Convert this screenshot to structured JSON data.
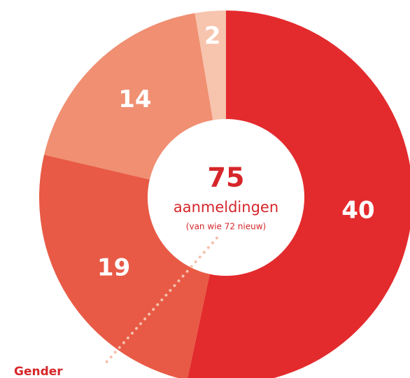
{
  "chart_data": {
    "type": "donut",
    "title": "Gender",
    "values": [
      40,
      19,
      14,
      2
    ],
    "colors": [
      "#e32b2d",
      "#e85a45",
      "#f08f72",
      "#f7c4ad"
    ],
    "center_value": 75,
    "center_label": "aanmeldingen",
    "center_sublabel": "(van wie 72 nieuw)"
  }
}
